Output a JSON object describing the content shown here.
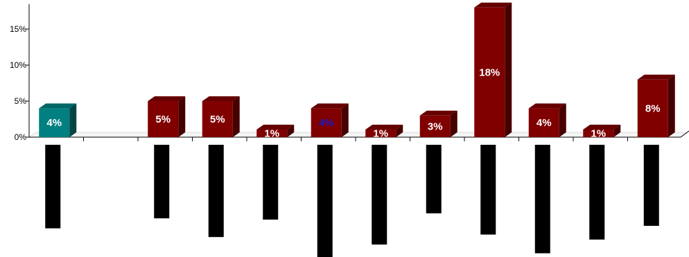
{
  "chart_data": {
    "type": "bar",
    "categories": [
      "",
      "",
      "",
      "",
      "",
      "",
      "",
      "",
      "",
      "",
      "",
      ""
    ],
    "values": [
      4,
      null,
      5,
      5,
      1,
      4,
      1,
      3,
      18,
      4,
      1,
      8
    ],
    "data_labels": [
      "4%",
      "",
      "5%",
      "5%",
      "1%",
      "4%",
      "1%",
      "3%",
      "18%",
      "4%",
      "1%",
      "8%"
    ],
    "bar_colors": [
      "#008080",
      null,
      "#800000",
      "#800000",
      "#800000",
      "#800000",
      "#800000",
      "#800000",
      "#800000",
      "#800000",
      "#800000",
      "#800000"
    ],
    "label_colors": [
      "#ffffff",
      null,
      "#ffffff",
      "#ffffff",
      "#ffffff",
      "#1a1acc",
      "#ffffff",
      "#ffffff",
      "#ffffff",
      "#ffffff",
      "#ffffff",
      "#ffffff"
    ],
    "yticks": [
      "0%",
      "5%",
      "10%",
      "15%"
    ],
    "ytick_values": [
      0,
      5,
      10,
      15
    ],
    "ylim": [
      0,
      18
    ],
    "secondary_bars": [
      6.7,
      null,
      5.9,
      7.4,
      6.0,
      9.0,
      8.0,
      5.5,
      7.2,
      8.7,
      7.6,
      6.5
    ],
    "secondary_color": "#000000",
    "grid": false,
    "style": "3d"
  }
}
